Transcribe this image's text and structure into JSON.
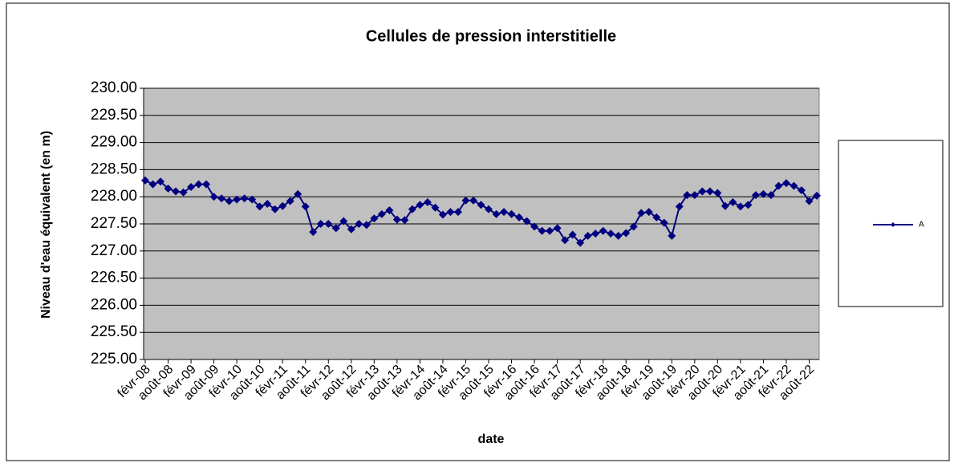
{
  "chart_data": {
    "type": "line",
    "title": "Cellules de pression interstitielle",
    "x_label": "date",
    "y_label": "Niveau d'eau équivalent (en m)",
    "categories": [
      "févr-08",
      null,
      null,
      "août-08",
      null,
      null,
      "févr-09",
      null,
      null,
      "août-09",
      null,
      null,
      "févr-10",
      null,
      null,
      "août-10",
      null,
      null,
      "févr-11",
      null,
      null,
      "août-11",
      null,
      null,
      "févr-12",
      null,
      null,
      "août-12",
      null,
      null,
      "févr-13",
      null,
      null,
      "août-13",
      null,
      null,
      "févr-14",
      null,
      null,
      "août-14",
      null,
      null,
      "févr-15",
      null,
      null,
      "août-15",
      null,
      null,
      "févr-16",
      null,
      null,
      "août-16",
      null,
      null,
      "févr-17",
      null,
      null,
      "août-17",
      null,
      null,
      "févr-18",
      null,
      null,
      "août-18",
      null,
      null,
      "févr-19",
      null,
      null,
      "août-19",
      null,
      null,
      "févr-20",
      null,
      null,
      "août-20",
      null,
      null,
      "févr-21",
      null,
      null,
      "août-21",
      null,
      null,
      "févr-22",
      null,
      null,
      "août-22",
      null
    ],
    "series": [
      {
        "name": "A",
        "color": "#000080",
        "values": [
          228.3,
          228.23,
          228.28,
          228.15,
          228.1,
          228.08,
          228.18,
          228.23,
          228.23,
          228.0,
          227.97,
          227.92,
          227.95,
          227.97,
          227.95,
          227.82,
          227.87,
          227.77,
          227.83,
          227.92,
          228.05,
          227.82,
          227.35,
          227.5,
          227.5,
          227.42,
          227.55,
          227.4,
          227.5,
          227.48,
          227.6,
          227.68,
          227.75,
          227.58,
          227.57,
          227.77,
          227.85,
          227.9,
          227.8,
          227.67,
          227.72,
          227.72,
          227.93,
          227.93,
          227.85,
          227.77,
          227.68,
          227.72,
          227.68,
          227.62,
          227.55,
          227.45,
          227.37,
          227.37,
          227.42,
          227.2,
          227.3,
          227.15,
          227.28,
          227.32,
          227.37,
          227.32,
          227.28,
          227.33,
          227.45,
          227.7,
          227.72,
          227.62,
          227.52,
          227.28,
          227.82,
          228.03,
          228.03,
          228.1,
          228.1,
          228.07,
          227.83,
          227.9,
          227.82,
          227.85,
          228.03,
          228.05,
          228.03,
          228.2,
          228.25,
          228.2,
          228.12,
          227.92,
          228.02
        ]
      }
    ],
    "ylim": [
      225,
      230
    ],
    "yticks": [
      {
        "value": 225,
        "label": "225.00"
      },
      {
        "value": 225.5,
        "label": "225.50"
      },
      {
        "value": 226,
        "label": "226.00"
      },
      {
        "value": 226.5,
        "label": "226.50"
      },
      {
        "value": 227,
        "label": "227.00"
      },
      {
        "value": 227.5,
        "label": "227.50"
      },
      {
        "value": 228,
        "label": "228.00"
      },
      {
        "value": 228.5,
        "label": "228.50"
      },
      {
        "value": 229,
        "label": "229.00"
      },
      {
        "value": 229.5,
        "label": "229.50"
      },
      {
        "value": 230,
        "label": "230.00"
      }
    ],
    "grid": true,
    "plot_background": "#c0c0c0",
    "legend": "right"
  }
}
